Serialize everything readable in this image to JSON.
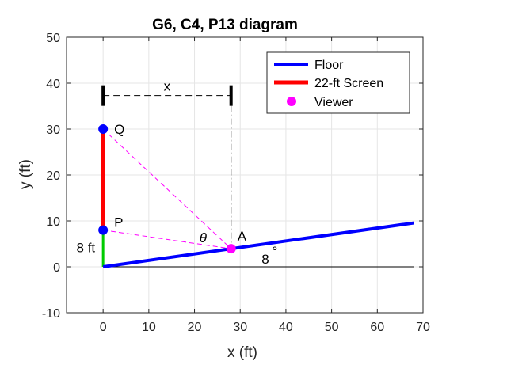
{
  "chart_data": {
    "type": "line",
    "title": "G6, C4, P13 diagram",
    "xlabel": "x (ft)",
    "ylabel": "y (ft)",
    "xlim": [
      -8,
      70
    ],
    "ylim": [
      -10,
      50
    ],
    "xticks": [
      0,
      10,
      20,
      30,
      40,
      50,
      60,
      70
    ],
    "yticks": [
      -10,
      0,
      10,
      20,
      30,
      40,
      50
    ],
    "grid": true,
    "legend_position": "top-right",
    "series": [
      {
        "name": "Floor",
        "color": "#0000ff",
        "x": [
          0,
          68
        ],
        "y": [
          0,
          9.56
        ]
      },
      {
        "name": "22-ft Screen",
        "color": "#ff0000",
        "x": [
          0,
          0
        ],
        "y": [
          8,
          30
        ]
      },
      {
        "name": "Viewer",
        "color": "#ff00ff",
        "x": [
          28
        ],
        "y": [
          3.94
        ]
      }
    ],
    "points": [
      {
        "label": "P",
        "x": 0,
        "y": 8,
        "color": "#0000ff"
      },
      {
        "label": "Q",
        "x": 0,
        "y": 30,
        "color": "#0000ff"
      },
      {
        "label": "A",
        "x": 28,
        "y": 3.94,
        "color": "#ff00ff"
      }
    ],
    "annotations": {
      "theta": "θ",
      "angle_value": "8",
      "angle_unit": "°",
      "height_label": "8 ft",
      "distance_label": "x"
    },
    "colors": {
      "floor": "#0000ff",
      "screen": "#ff0000",
      "viewer": "#ff00ff",
      "height_segment": "#00cc00",
      "grid": "#e6e6e6"
    }
  }
}
